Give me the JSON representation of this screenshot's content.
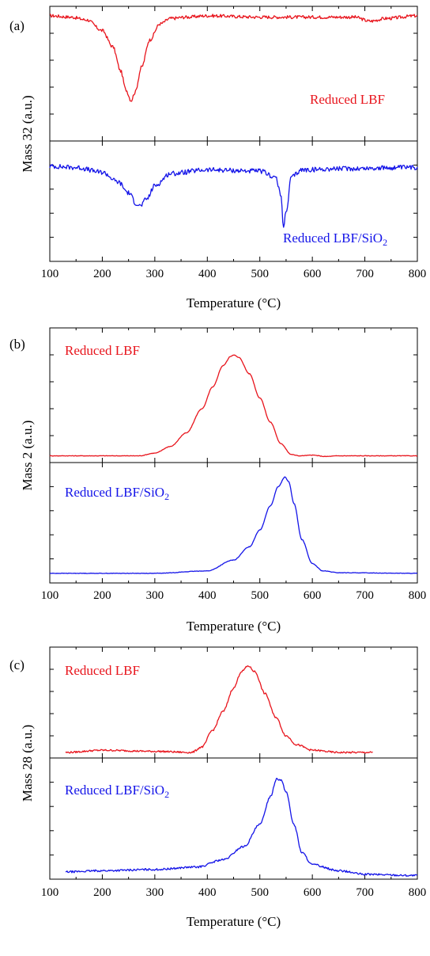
{
  "chart_data": [
    {
      "type": "line",
      "panel_label": "(a)",
      "ylabel": "Mass 32 (a.u.)",
      "xlabel": "Temperature (°C)",
      "xlim": [
        100,
        800
      ],
      "xticks": [
        "100",
        "200",
        "300",
        "400",
        "500",
        "600",
        "700",
        "800"
      ],
      "subplots": [
        {
          "ylim": [
            0,
            1
          ],
          "label": {
            "text": "Reduced LBF",
            "sub": "",
            "color": "#e8141c"
          },
          "series": [
            {
              "name": "Reduced LBF",
              "color": "#e8141c",
              "noise": 0.012,
              "x": [
                100,
                140,
                170,
                200,
                220,
                235,
                245,
                255,
                262,
                275,
                290,
                310,
                330,
                360,
                400,
                500,
                600,
                680,
                710,
                740,
                800
              ],
              "y": [
                0.93,
                0.92,
                0.9,
                0.82,
                0.7,
                0.52,
                0.38,
                0.3,
                0.36,
                0.55,
                0.75,
                0.87,
                0.91,
                0.92,
                0.93,
                0.92,
                0.92,
                0.92,
                0.89,
                0.91,
                0.93
              ]
            }
          ]
        },
        {
          "ylim": [
            0,
            1
          ],
          "label": {
            "text": "Reduced LBF/SiO",
            "sub": "2",
            "color": "#1414e8"
          },
          "series": [
            {
              "name": "Reduced LBF/SiO2",
              "color": "#1414e8",
              "noise": 0.02,
              "x": [
                100,
                150,
                200,
                230,
                250,
                265,
                272,
                285,
                300,
                330,
                400,
                500,
                530,
                540,
                545,
                550,
                560,
                580,
                650,
                800
              ],
              "y": [
                0.79,
                0.78,
                0.74,
                0.66,
                0.57,
                0.48,
                0.46,
                0.52,
                0.63,
                0.73,
                0.76,
                0.75,
                0.7,
                0.55,
                0.3,
                0.4,
                0.7,
                0.76,
                0.77,
                0.78
              ]
            }
          ]
        }
      ]
    },
    {
      "type": "line",
      "panel_label": "(b)",
      "ylabel": "Mass 2 (a.u.)",
      "xlabel": "Temperature (°C)",
      "xlim": [
        100,
        800
      ],
      "xticks": [
        "100",
        "200",
        "300",
        "400",
        "500",
        "600",
        "700",
        "800"
      ],
      "subplots": [
        {
          "ylim": [
            0,
            1
          ],
          "label": {
            "text": "Reduced LBF",
            "sub": "",
            "color": "#e8141c"
          },
          "series": [
            {
              "name": "Reduced LBF",
              "color": "#e8141c",
              "noise": 0.002,
              "x": [
                100,
                200,
                270,
                300,
                330,
                360,
                390,
                410,
                430,
                445,
                450,
                460,
                480,
                500,
                520,
                540,
                560,
                575,
                600,
                625,
                650,
                800
              ],
              "y": [
                0.05,
                0.05,
                0.05,
                0.07,
                0.12,
                0.22,
                0.4,
                0.56,
                0.72,
                0.79,
                0.8,
                0.78,
                0.66,
                0.48,
                0.3,
                0.14,
                0.06,
                0.05,
                0.055,
                0.045,
                0.05,
                0.05
              ]
            }
          ]
        },
        {
          "ylim": [
            0,
            1
          ],
          "label": {
            "text": "Reduced LBF/SiO",
            "sub": "2",
            "color": "#1414e8"
          },
          "series": [
            {
              "name": "Reduced LBF/SiO2",
              "color": "#1414e8",
              "noise": 0.002,
              "x": [
                100,
                300,
                400,
                450,
                480,
                500,
                520,
                535,
                548,
                555,
                565,
                580,
                600,
                620,
                650,
                800
              ],
              "y": [
                0.08,
                0.08,
                0.1,
                0.19,
                0.3,
                0.44,
                0.64,
                0.8,
                0.88,
                0.84,
                0.66,
                0.36,
                0.16,
                0.1,
                0.085,
                0.08
              ]
            }
          ]
        }
      ]
    },
    {
      "type": "line",
      "panel_label": "(c)",
      "ylabel": "Mass 28 (a.u.)",
      "xlabel": "Temperature (°C)",
      "xlim": [
        100,
        800
      ],
      "xticks": [
        "100",
        "200",
        "300",
        "400",
        "500",
        "600",
        "700",
        "800"
      ],
      "subplots": [
        {
          "ylim": [
            0,
            1
          ],
          "label": {
            "text": "Reduced LBF",
            "sub": "",
            "color": "#e8141c"
          },
          "series": [
            {
              "name": "Reduced LBF",
              "color": "#e8141c",
              "noise": 0.008,
              "x": [
                130,
                200,
                300,
                370,
                390,
                410,
                430,
                450,
                465,
                478,
                490,
                510,
                530,
                550,
                570,
                600,
                650,
                715
              ],
              "y": [
                0.05,
                0.07,
                0.06,
                0.05,
                0.1,
                0.25,
                0.42,
                0.63,
                0.78,
                0.83,
                0.78,
                0.58,
                0.37,
                0.2,
                0.12,
                0.07,
                0.05,
                0.05
              ]
            }
          ]
        },
        {
          "ylim": [
            0,
            1
          ],
          "label": {
            "text": "Reduced LBF/SiO",
            "sub": "2",
            "color": "#1414e8"
          },
          "series": [
            {
              "name": "Reduced LBF/SiO2",
              "color": "#1414e8",
              "noise": 0.008,
              "x": [
                130,
                200,
                300,
                380,
                430,
                470,
                500,
                520,
                532,
                540,
                550,
                565,
                580,
                600,
                650,
                700,
                800
              ],
              "y": [
                0.06,
                0.07,
                0.08,
                0.1,
                0.16,
                0.27,
                0.45,
                0.68,
                0.83,
                0.82,
                0.72,
                0.45,
                0.22,
                0.12,
                0.07,
                0.04,
                0.03
              ]
            }
          ]
        }
      ]
    }
  ]
}
